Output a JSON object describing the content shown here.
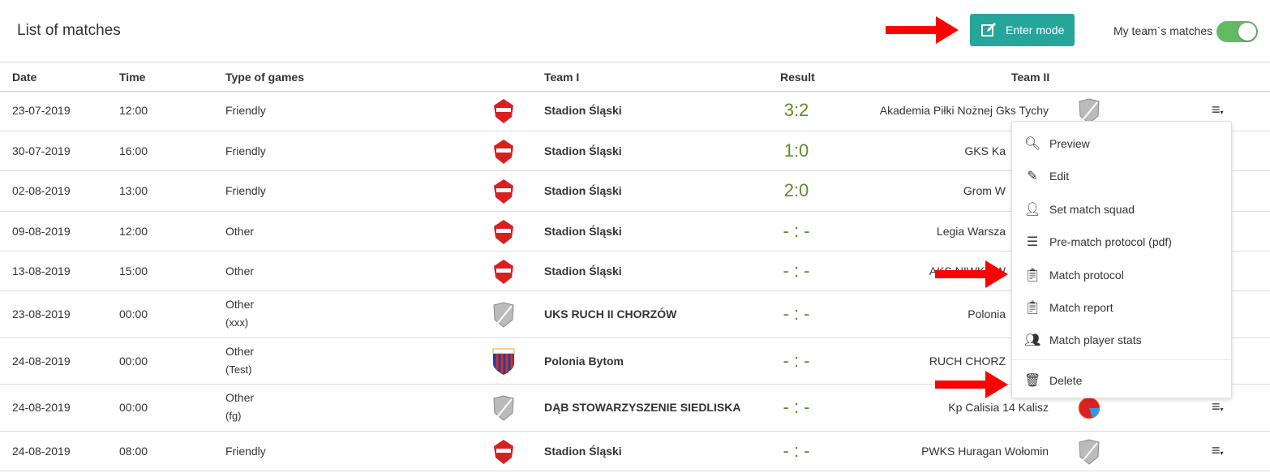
{
  "header": {
    "title": "List of matches",
    "enter_mode_label": "Enter mode",
    "toggle_label": "My team`s matches",
    "toggle_on": true
  },
  "columns": {
    "date": "Date",
    "time": "Time",
    "type": "Type of games",
    "team1": "Team I",
    "result": "Result",
    "team2": "Team II"
  },
  "rows": [
    {
      "date": "23-07-2019",
      "time": "12:00",
      "type": "Friendly",
      "sub": "",
      "team1": "Stadion Śląski",
      "logo1": "red-crest",
      "result": "3:2",
      "team2": "Akademia Piłki Nożnej Gks Tychy",
      "logo2": "gray-shield"
    },
    {
      "date": "30-07-2019",
      "time": "16:00",
      "type": "Friendly",
      "sub": "",
      "team1": "Stadion Śląski",
      "logo1": "red-crest",
      "result": "1:0",
      "team2": "GKS Ka",
      "logo2": ""
    },
    {
      "date": "02-08-2019",
      "time": "13:00",
      "type": "Friendly",
      "sub": "",
      "team1": "Stadion Śląski",
      "logo1": "red-crest",
      "result": "2:0",
      "team2": "Grom W",
      "logo2": ""
    },
    {
      "date": "09-08-2019",
      "time": "12:00",
      "type": "Other",
      "sub": "",
      "team1": "Stadion Śląski",
      "logo1": "red-crest",
      "result": "- : -",
      "team2": "Legia Warsza",
      "logo2": ""
    },
    {
      "date": "13-08-2019",
      "time": "15:00",
      "type": "Other",
      "sub": "",
      "team1": "Stadion Śląski",
      "logo1": "red-crest",
      "result": "- : -",
      "team2": "AKS NIWKA W",
      "logo2": ""
    },
    {
      "date": "23-08-2019",
      "time": "00:00",
      "type": "Other",
      "sub": "(xxx)",
      "team1": "UKS RUCH II CHORZÓW",
      "logo1": "gray-shield",
      "result": "- : -",
      "team2": "Polonia",
      "logo2": ""
    },
    {
      "date": "24-08-2019",
      "time": "00:00",
      "type": "Other",
      "sub": "(Test)",
      "team1": "Polonia Bytom",
      "logo1": "polonia-crest",
      "result": "- : -",
      "team2": "RUCH CHORZ",
      "logo2": ""
    },
    {
      "date": "24-08-2019",
      "time": "00:00",
      "type": "Other",
      "sub": "(fg)",
      "team1": "DĄB STOWARZYSZENIE SIEDLISKA",
      "logo1": "gray-shield",
      "result": "- : -",
      "team2": "Kp Calisia 14 Kalisz",
      "logo2": "calisia-crest"
    },
    {
      "date": "24-08-2019",
      "time": "08:00",
      "type": "Friendly",
      "sub": "",
      "team1": "Stadion Śląski",
      "logo1": "red-crest",
      "result": "- : -",
      "team2": "PWKS Huragan Wołomin",
      "logo2": "gray-shield"
    }
  ],
  "menu": {
    "items": [
      {
        "label": "Preview",
        "icon": "search-icon"
      },
      {
        "label": "Edit",
        "icon": "edit-icon"
      },
      {
        "label": "Set match squad",
        "icon": "user-check-icon"
      },
      {
        "label": "Pre-match protocol (pdf)",
        "icon": "list-icon"
      },
      {
        "label": "Match protocol",
        "icon": "clipboard-icon"
      },
      {
        "label": "Match report",
        "icon": "clipboard-list-icon"
      },
      {
        "label": "Match player stats",
        "icon": "people-icon"
      }
    ],
    "delete": {
      "label": "Delete",
      "icon": "trash-icon"
    }
  },
  "colors": {
    "accent": "#26a69a",
    "toggle": "#62bb63",
    "score": "#5b8c2a",
    "annotation": "#ff0000"
  }
}
